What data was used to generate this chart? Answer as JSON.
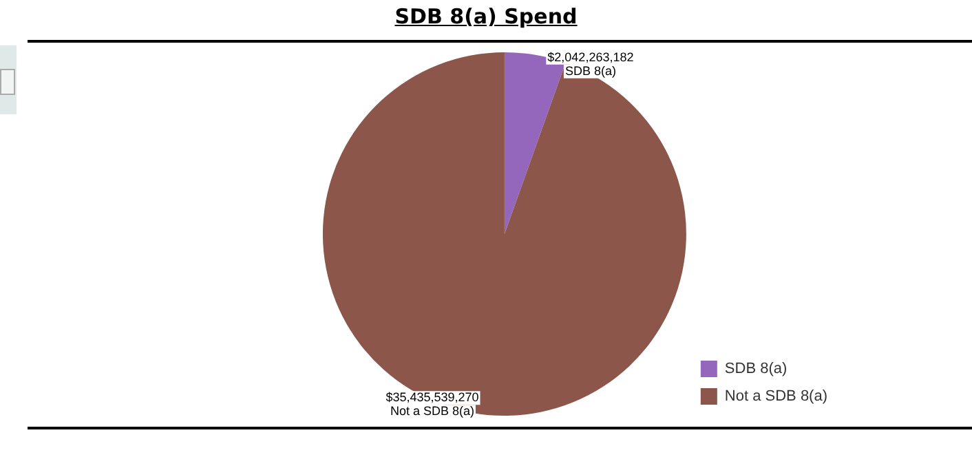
{
  "chart_data": {
    "type": "pie",
    "title": "SDB 8(a) Spend",
    "categories": [
      "SDB 8(a)",
      "Not a SDB 8(a)"
    ],
    "values": [
      2042263182,
      35435539270
    ],
    "colors": [
      "#9467bd",
      "#8c564b"
    ],
    "value_labels": [
      "$2,042,263,182",
      "$35,435,539,270"
    ],
    "legend": "bottom right"
  }
}
